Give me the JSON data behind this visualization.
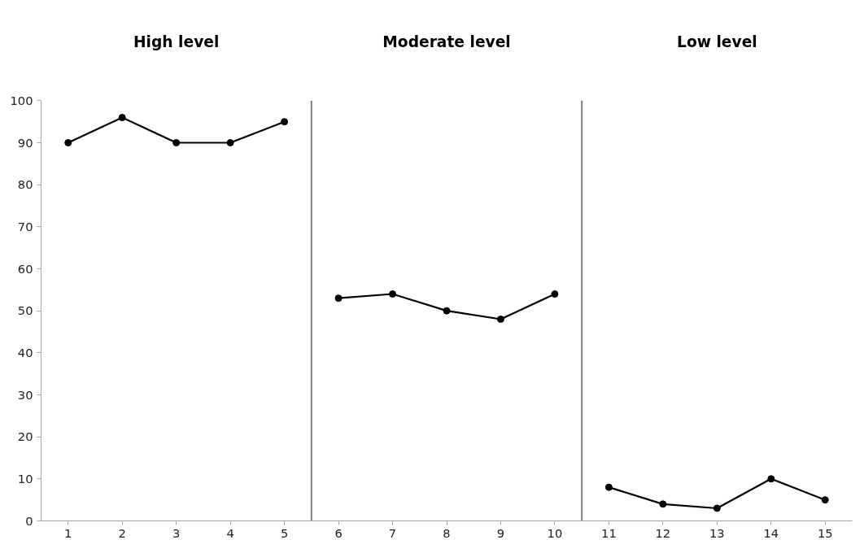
{
  "chart_data": {
    "type": "line",
    "xlim": [
      0.5,
      15.5
    ],
    "ylim": [
      0,
      100
    ],
    "xticks": [
      1,
      2,
      3,
      4,
      5,
      6,
      7,
      8,
      9,
      10,
      11,
      12,
      13,
      14,
      15
    ],
    "yticks": [
      0,
      10,
      20,
      30,
      40,
      50,
      60,
      70,
      80,
      90,
      100
    ],
    "series": [
      {
        "color": "#000000",
        "x": [
          1,
          2,
          3,
          4,
          5
        ],
        "values": [
          90,
          96,
          90,
          90,
          95
        ]
      },
      {
        "color": "#000000",
        "x": [
          6,
          7,
          8,
          9,
          10
        ],
        "values": [
          53,
          54,
          50,
          48,
          54
        ]
      },
      {
        "color": "#000000",
        "x": [
          11,
          12,
          13,
          14,
          15
        ],
        "values": [
          8,
          4,
          3,
          10,
          5
        ]
      }
    ],
    "ref_lines": [
      {
        "axis": "x",
        "value": 5.5,
        "color": "#808080"
      },
      {
        "axis": "x",
        "value": 10.5,
        "color": "#808080"
      }
    ],
    "annotations": [
      "High level",
      "Moderate level",
      "Low level"
    ],
    "marker": "circle",
    "line_style": "solid",
    "grid": false
  }
}
